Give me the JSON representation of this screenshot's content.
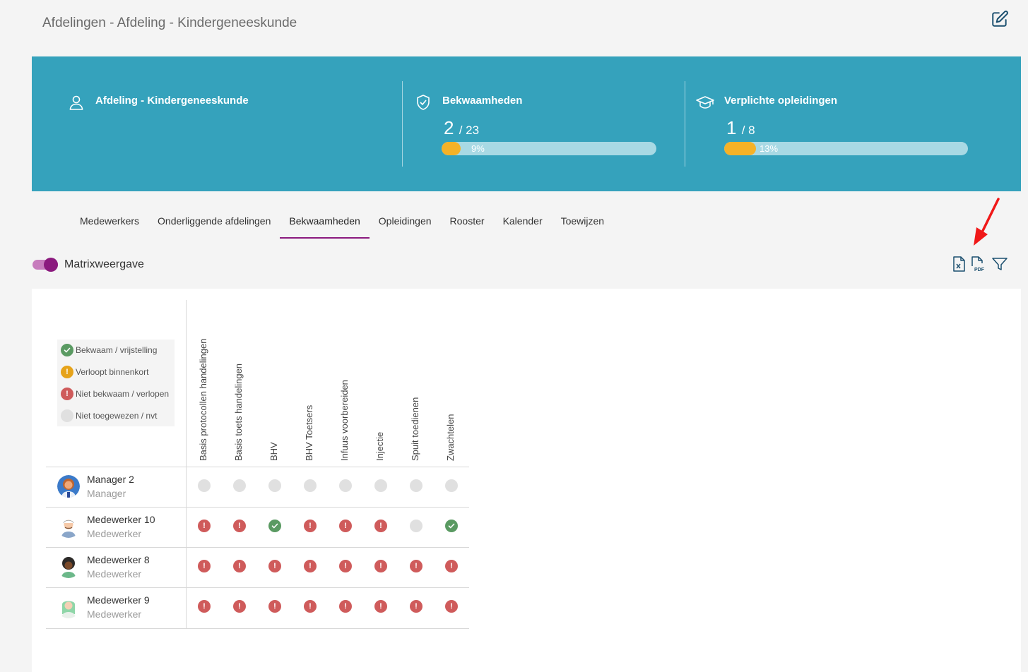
{
  "breadcrumb": "Afdelingen - Afdeling - Kindergeneeskunde",
  "banner": {
    "department": {
      "title": "Afdeling - Kindergeneeskunde",
      "icon": "user-icon"
    },
    "competencies": {
      "title": "Bekwaamheden",
      "icon": "shield-check-icon",
      "count": "2",
      "total": "/ 23",
      "percent_label": "9%",
      "percent": 0.09
    },
    "trainings": {
      "title": "Verplichte opleidingen",
      "icon": "graduation-cap-icon",
      "count": "1",
      "total": "/ 8",
      "percent_label": "13%",
      "percent": 0.13
    }
  },
  "tabs": [
    "Medewerkers",
    "Onderliggende afdelingen",
    "Bekwaamheden",
    "Opleidingen",
    "Rooster",
    "Kalender",
    "Toewijzen"
  ],
  "active_tab": "Bekwaamheden",
  "toggle": {
    "label": "Matrixweergave",
    "on": true
  },
  "toolbar": {
    "excel_icon": "excel-export-icon",
    "pdf_icon": "pdf-export-icon",
    "filter_icon": "filter-icon"
  },
  "legend": [
    {
      "label": "Bekwaam / vrijstelling",
      "status": "green"
    },
    {
      "label": "Verloopt binnenkort",
      "status": "orange"
    },
    {
      "label": "Niet bekwaam / verlopen",
      "status": "red"
    },
    {
      "label": "Niet toegewezen / nvt",
      "status": "grey"
    }
  ],
  "columns": [
    "Basis protocollen handelingen",
    "Basis toets handelingen",
    "BHV",
    "BHV Toetsers",
    "Infuus voorbereiden",
    "Injectie",
    "Spuit toedienen",
    "Zwachtelen"
  ],
  "employees": [
    {
      "name": "Manager 2",
      "role": "Manager",
      "statuses": [
        "grey",
        "grey",
        "grey",
        "grey",
        "grey",
        "grey",
        "grey",
        "grey"
      ]
    },
    {
      "name": "Medewerker 10",
      "role": "Medewerker",
      "statuses": [
        "red",
        "red",
        "green",
        "red",
        "red",
        "red",
        "grey",
        "green"
      ]
    },
    {
      "name": "Medewerker 8",
      "role": "Medewerker",
      "statuses": [
        "red",
        "red",
        "red",
        "red",
        "red",
        "red",
        "red",
        "red"
      ]
    },
    {
      "name": "Medewerker 9",
      "role": "Medewerker",
      "statuses": [
        "red",
        "red",
        "red",
        "red",
        "red",
        "red",
        "red",
        "red"
      ]
    }
  ],
  "colors": {
    "banner": "#35a2bc",
    "accent": "#8b1a7e",
    "progress": "#f5b227",
    "green": "#5a9a62",
    "red": "#cf5b5b",
    "orange": "#e6a31a",
    "grey": "#e0e0e0"
  }
}
